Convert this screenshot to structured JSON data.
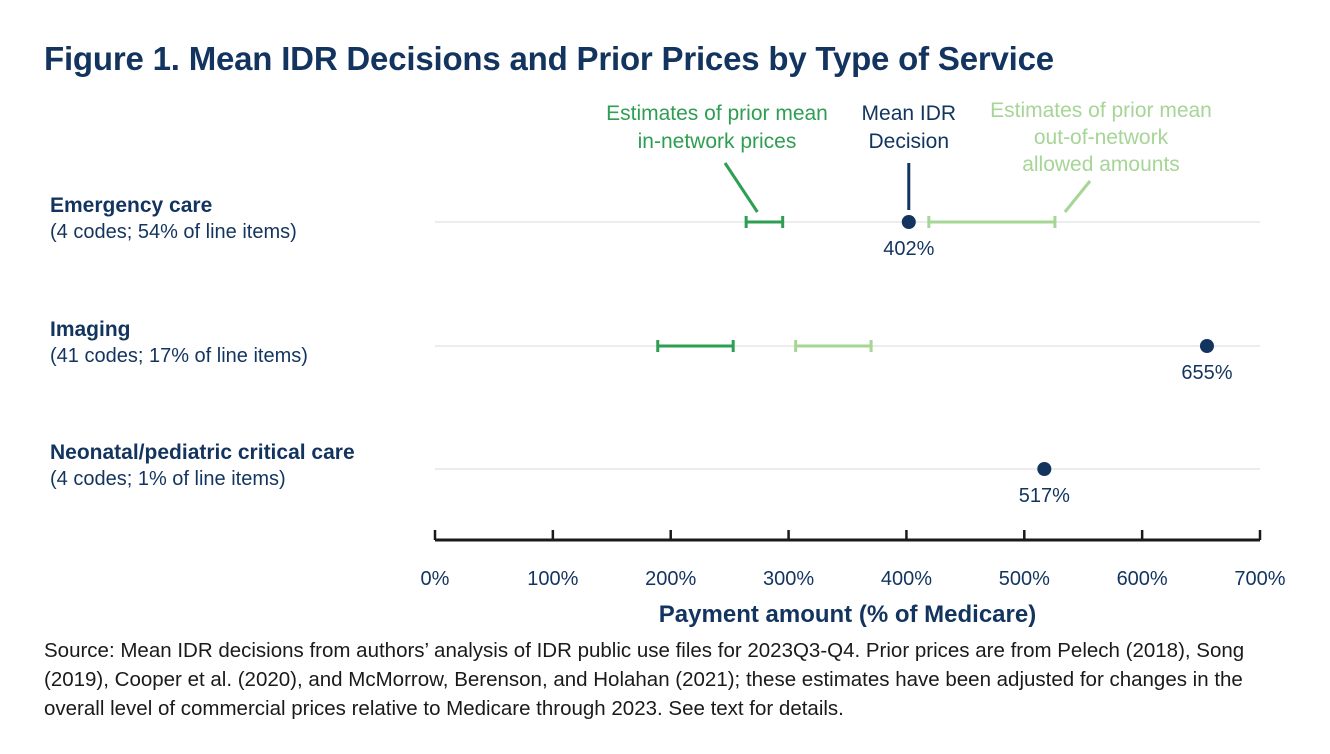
{
  "title": "Figure 1. Mean IDR Decisions and Prior Prices by Type of Service",
  "colors": {
    "navy": "#12345f",
    "in_network_green": "#2e9e52",
    "out_of_network_green": "#a6d596",
    "gridline": "#e6e6e6",
    "axis": "#1a1a1a"
  },
  "annotations": {
    "in_network": [
      "Estimates of prior mean",
      "in-network prices"
    ],
    "mean_idr": [
      "Mean IDR",
      "Decision"
    ],
    "out_of_network": [
      "Estimates of prior mean",
      "out-of-network",
      "allowed amounts"
    ]
  },
  "source": "Source: Mean IDR decisions from authors’ analysis of IDR public use files for 2023Q3-Q4. Prior prices are from Pelech (2018), Song (2019), Cooper et al. (2020), and McMorrow, Berenson, and Holahan (2021); these estimates have been adjusted for changes in the overall level of commercial prices relative to Medicare through 2023. See text for details.",
  "chart_data": {
    "type": "scatter",
    "title": "Figure 1. Mean IDR Decisions and Prior Prices by Type of Service",
    "xlabel": "Payment amount (% of Medicare)",
    "ylabel": "",
    "xlim": [
      0,
      700
    ],
    "xticks": [
      0,
      100,
      200,
      300,
      400,
      500,
      600,
      700
    ],
    "xtick_labels": [
      "0%",
      "100%",
      "200%",
      "300%",
      "400%",
      "500%",
      "600%",
      "700%"
    ],
    "grid": "horizontal gridlines per category",
    "categories": [
      {
        "name": "Emergency care",
        "detail": "(4 codes; 54% of line items)",
        "mean_idr": 402,
        "mean_idr_label": "402%",
        "in_network_range": [
          264,
          295
        ],
        "out_of_network_range": [
          419,
          526
        ]
      },
      {
        "name": "Imaging",
        "detail": "(41 codes; 17% of line items)",
        "mean_idr": 655,
        "mean_idr_label": "655%",
        "in_network_range": [
          189,
          253
        ],
        "out_of_network_range": [
          306,
          370
        ]
      },
      {
        "name": "Neonatal/pediatric critical care",
        "detail": "(4 codes; 1% of line items)",
        "mean_idr": 517,
        "mean_idr_label": "517%",
        "in_network_range": null,
        "out_of_network_range": null
      }
    ]
  }
}
